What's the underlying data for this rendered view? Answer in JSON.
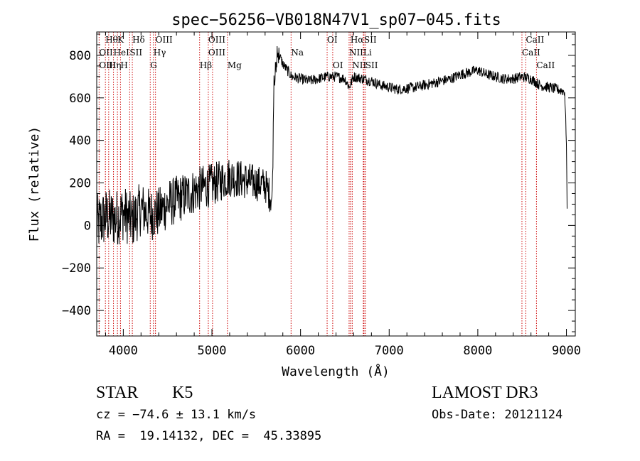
{
  "chart_data": {
    "type": "line",
    "title": "spec−56256−VB018N47V1_sp07−045.fits",
    "xlabel": "Wavelength (Å)",
    "ylabel": "Flux (relative)",
    "xlim": [
      3700,
      9100
    ],
    "ylim": [
      -520,
      910
    ],
    "x_ticks": [
      4000,
      5000,
      6000,
      7000,
      8000,
      9000
    ],
    "x_tick_labels": [
      "4000",
      "5000",
      "6000",
      "7000",
      "8000",
      "9000"
    ],
    "y_ticks": [
      -400,
      -200,
      0,
      200,
      400,
      600,
      800
    ],
    "y_tick_labels": [
      "−400",
      "−200",
      "0",
      "200",
      "400",
      "600",
      "800"
    ],
    "series": [
      {
        "name": "flux",
        "anchors": [
          [
            3700,
            0
          ],
          [
            3800,
            40
          ],
          [
            3900,
            30
          ],
          [
            4000,
            60
          ],
          [
            4100,
            20
          ],
          [
            4200,
            80
          ],
          [
            4300,
            50
          ],
          [
            4400,
            60
          ],
          [
            4500,
            100
          ],
          [
            4600,
            120
          ],
          [
            4700,
            140
          ],
          [
            4800,
            160
          ],
          [
            4900,
            180
          ],
          [
            5000,
            190
          ],
          [
            5100,
            210
          ],
          [
            5200,
            230
          ],
          [
            5300,
            220
          ],
          [
            5400,
            210
          ],
          [
            5500,
            200
          ],
          [
            5600,
            190
          ],
          [
            5680,
            120
          ],
          [
            5700,
            700
          ],
          [
            5750,
            810
          ],
          [
            5800,
            760
          ],
          [
            5900,
            700
          ],
          [
            6000,
            690
          ],
          [
            6100,
            680
          ],
          [
            6200,
            690
          ],
          [
            6300,
            700
          ],
          [
            6400,
            700
          ],
          [
            6500,
            690
          ],
          [
            6550,
            650
          ],
          [
            6600,
            700
          ],
          [
            6700,
            690
          ],
          [
            6800,
            680
          ],
          [
            6900,
            660
          ],
          [
            7000,
            650
          ],
          [
            7100,
            640
          ],
          [
            7200,
            645
          ],
          [
            7300,
            650
          ],
          [
            7400,
            660
          ],
          [
            7500,
            670
          ],
          [
            7600,
            680
          ],
          [
            7700,
            690
          ],
          [
            7800,
            710
          ],
          [
            7900,
            720
          ],
          [
            8000,
            730
          ],
          [
            8100,
            710
          ],
          [
            8200,
            700
          ],
          [
            8300,
            690
          ],
          [
            8400,
            690
          ],
          [
            8500,
            700
          ],
          [
            8600,
            690
          ],
          [
            8700,
            660
          ],
          [
            8800,
            650
          ],
          [
            8900,
            640
          ],
          [
            8980,
            630
          ],
          [
            9000,
            400
          ],
          [
            9010,
            0
          ]
        ],
        "noise_amplitude_blue": 90,
        "noise_amplitude_red": 25
      }
    ],
    "lines": [
      {
        "label": "Hθ",
        "x": 3798,
        "row": 0
      },
      {
        "label": "K",
        "x": 3934,
        "row": 0
      },
      {
        "label": "Hδ",
        "x": 4102,
        "row": 0
      },
      {
        "label": "OIII",
        "x": 4363,
        "row": 0
      },
      {
        "label": "OIII",
        "x": 4959,
        "row": 0
      },
      {
        "label": "OI",
        "x": 6300,
        "row": 0
      },
      {
        "label": "Hα",
        "x": 6563,
        "row": 0
      },
      {
        "label": "SII",
        "x": 6716,
        "row": 0
      },
      {
        "label": "CaII",
        "x": 8542,
        "row": 0
      },
      {
        "label": "OII",
        "x": 3727,
        "row": 1
      },
      {
        "label": "HeI",
        "x": 3889,
        "row": 1
      },
      {
        "label": "SII",
        "x": 4072,
        "row": 1
      },
      {
        "label": "Hγ",
        "x": 4340,
        "row": 1
      },
      {
        "label": "OIII",
        "x": 4959,
        "row": 1
      },
      {
        "label": "Na",
        "x": 5893,
        "row": 1
      },
      {
        "label": "NII",
        "x": 6548,
        "row": 1
      },
      {
        "label": "Li",
        "x": 6708,
        "row": 1
      },
      {
        "label": "CaII",
        "x": 8498,
        "row": 1
      },
      {
        "label": "OIII",
        "x": 3727,
        "row": 2
      },
      {
        "label": "Hη",
        "x": 3835,
        "row": 2
      },
      {
        "label": "H",
        "x": 3968,
        "row": 2
      },
      {
        "label": "G",
        "x": 4304,
        "row": 2
      },
      {
        "label": "Hβ",
        "x": 4861,
        "row": 2
      },
      {
        "label": "Mg",
        "x": 5175,
        "row": 2
      },
      {
        "label": "OI",
        "x": 6363,
        "row": 2
      },
      {
        "label": "NII",
        "x": 6583,
        "row": 2
      },
      {
        "label": "SII",
        "x": 6731,
        "row": 2
      },
      {
        "label": "CaII",
        "x": 8662,
        "row": 2
      }
    ],
    "line_markers": [
      3727,
      3798,
      3835,
      3889,
      3934,
      3968,
      4072,
      4102,
      4304,
      4340,
      4363,
      4861,
      4959,
      5007,
      5175,
      5893,
      6300,
      6363,
      6548,
      6563,
      6583,
      6708,
      6716,
      6731,
      8498,
      8542,
      8662
    ],
    "marker_color": "#cc0000"
  },
  "info": {
    "object_class": "STAR",
    "subclass": "K5",
    "survey": "LAMOST DR3",
    "velocity": "cz = −74.6 ± 13.1 km/s",
    "obs_date": "Obs-Date: 20121124",
    "coords": "RA =  19.14132, DEC =  45.33895"
  }
}
